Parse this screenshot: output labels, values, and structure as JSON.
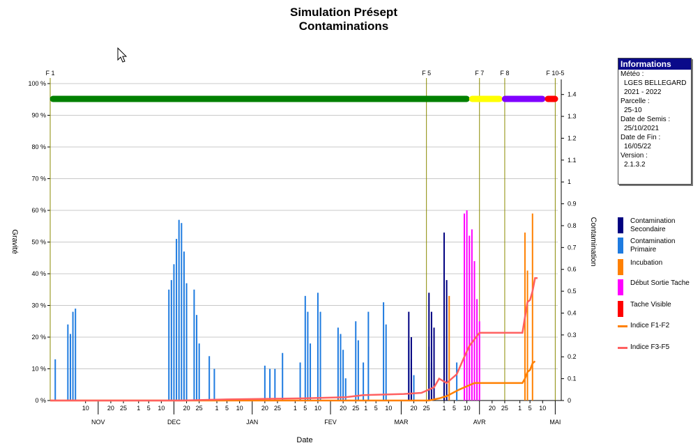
{
  "title": {
    "line1": "Simulation Présept",
    "line2": "Contaminations"
  },
  "info": {
    "header": "Informations",
    "rows": [
      {
        "label": "Météo :",
        "value": "LGES BELLEGARD"
      },
      {
        "label": "",
        "value": "2021 - 2022"
      },
      {
        "label": "Parcelle :",
        "value": "25-10"
      },
      {
        "label": "Date de Semis :",
        "value": "25/10/2021"
      },
      {
        "label": "Date de Fin :",
        "value": "16/05/22"
      },
      {
        "label": "Version :",
        "value": "2.1.3.2"
      }
    ]
  },
  "legend": [
    {
      "label": "Contamination Secondaire",
      "color": "#000080",
      "kind": "box"
    },
    {
      "label": "Contamination Primaire",
      "color": "#1e7be0",
      "kind": "box"
    },
    {
      "label": "Incubation",
      "color": "#ff8000",
      "kind": "box"
    },
    {
      "label": "Début Sortie Tache",
      "color": "#ff00ff",
      "kind": "box"
    },
    {
      "label": "Tache Visible",
      "color": "#ff0000",
      "kind": "box"
    },
    {
      "label": "Indice F1-F2",
      "color": "#ff8000",
      "kind": "line"
    },
    {
      "label": "Indice F3-F5",
      "color": "#ff6060",
      "kind": "line"
    }
  ],
  "chart_data": {
    "type": "bar",
    "xlabel": "Date",
    "ylabel_left": "Gravité",
    "ylabel_right": "Contamination",
    "y_left_ticks": [
      "0 %",
      "10 %",
      "20 %",
      "30 %",
      "40 %",
      "50 %",
      "60 %",
      "70 %",
      "80 %",
      "90 %",
      "100 %"
    ],
    "y_right_ticks": [
      "0",
      "0.1",
      "0.2",
      "0.3",
      "0.4",
      "0.5",
      "0.6",
      "0.7",
      "0.8",
      "0.9",
      "1",
      "1.1",
      "1.2",
      "1.3",
      "1.4"
    ],
    "ylim_left": [
      0,
      100
    ],
    "ylim_right": [
      0,
      1.45
    ],
    "start_date": "2021-10-27",
    "x_day_ticks": [
      {
        "day": 14,
        "label": "10"
      },
      {
        "day": 24,
        "label": "20"
      },
      {
        "day": 29,
        "label": "25"
      },
      {
        "day": 35,
        "label": "1"
      },
      {
        "day": 39,
        "label": "5"
      },
      {
        "day": 44,
        "label": "10"
      },
      {
        "day": 54,
        "label": "20"
      },
      {
        "day": 59,
        "label": "25"
      },
      {
        "day": 66,
        "label": "1"
      },
      {
        "day": 70,
        "label": "5"
      },
      {
        "day": 75,
        "label": "10"
      },
      {
        "day": 85,
        "label": "20"
      },
      {
        "day": 90,
        "label": "25"
      },
      {
        "day": 97,
        "label": "1"
      },
      {
        "day": 101,
        "label": "5"
      },
      {
        "day": 106,
        "label": "10"
      },
      {
        "day": 116,
        "label": "20"
      },
      {
        "day": 121,
        "label": "25"
      },
      {
        "day": 125,
        "label": "1"
      },
      {
        "day": 129,
        "label": "5"
      },
      {
        "day": 134,
        "label": "10"
      },
      {
        "day": 144,
        "label": "20"
      },
      {
        "day": 149,
        "label": "25"
      },
      {
        "day": 156,
        "label": "1"
      },
      {
        "day": 160,
        "label": "5"
      },
      {
        "day": 165,
        "label": "10"
      },
      {
        "day": 175,
        "label": "20"
      },
      {
        "day": 180,
        "label": "25"
      },
      {
        "day": 186,
        "label": "1"
      },
      {
        "day": 190,
        "label": "5"
      },
      {
        "day": 195,
        "label": "10"
      }
    ],
    "x_months": [
      {
        "day": 19,
        "label": "NOV"
      },
      {
        "day": 49,
        "label": "DEC"
      },
      {
        "day": 80,
        "label": "JAN"
      },
      {
        "day": 111,
        "label": "FEV"
      },
      {
        "day": 139,
        "label": "MAR"
      },
      {
        "day": 170,
        "label": "AVR"
      },
      {
        "day": 200,
        "label": "MAI"
      }
    ],
    "stages": [
      {
        "day": 0,
        "label": "F 1"
      },
      {
        "day": 149,
        "label": "F 5"
      },
      {
        "day": 170,
        "label": "F 7"
      },
      {
        "day": 180,
        "label": "F 8"
      },
      {
        "day": 200,
        "label": "F 10-5"
      }
    ],
    "phase_bar": [
      {
        "from": 0,
        "to": 166,
        "color": "#008000"
      },
      {
        "from": 166,
        "to": 179,
        "color": "#ffff00"
      },
      {
        "from": 179,
        "to": 196,
        "color": "#8000ff"
      },
      {
        "from": 196,
        "to": 201,
        "color": "#ff0000"
      }
    ],
    "series": [
      {
        "name": "Contamination Primaire",
        "color": "#1e7be0",
        "points": [
          [
            2,
            13
          ],
          [
            7,
            24
          ],
          [
            8,
            21
          ],
          [
            9,
            28
          ],
          [
            10,
            29
          ],
          [
            47,
            35
          ],
          [
            48,
            38
          ],
          [
            49,
            43
          ],
          [
            50,
            51
          ],
          [
            51,
            57
          ],
          [
            52,
            56
          ],
          [
            53,
            47
          ],
          [
            54,
            37
          ],
          [
            57,
            35
          ],
          [
            58,
            27
          ],
          [
            59,
            18
          ],
          [
            63,
            14
          ],
          [
            65,
            10
          ],
          [
            85,
            11
          ],
          [
            87,
            10
          ],
          [
            89,
            10
          ],
          [
            92,
            15
          ],
          [
            99,
            12
          ],
          [
            101,
            33
          ],
          [
            102,
            28
          ],
          [
            103,
            18
          ],
          [
            106,
            34
          ],
          [
            107,
            28
          ],
          [
            114,
            23
          ],
          [
            115,
            21
          ],
          [
            116,
            16
          ],
          [
            117,
            7
          ],
          [
            121,
            25
          ],
          [
            122,
            19
          ],
          [
            124,
            12
          ],
          [
            126,
            28
          ],
          [
            132,
            31
          ],
          [
            133,
            24
          ],
          [
            142,
            19
          ],
          [
            143,
            13
          ],
          [
            144,
            8
          ],
          [
            150,
            17
          ],
          [
            151,
            12
          ],
          [
            161,
            12
          ]
        ]
      },
      {
        "name": "Contamination Secondaire",
        "color": "#000080",
        "points": [
          [
            142,
            28
          ],
          [
            143,
            20
          ],
          [
            150,
            34
          ],
          [
            151,
            28
          ],
          [
            152,
            23
          ],
          [
            156,
            53
          ],
          [
            157,
            38
          ]
        ]
      },
      {
        "name": "Incubation",
        "color": "#ff8000",
        "points": [
          [
            158,
            33
          ],
          [
            188,
            53
          ],
          [
            189,
            41
          ],
          [
            191,
            59
          ]
        ]
      },
      {
        "name": "Début Sortie Tache",
        "color": "#ff00ff",
        "points": [
          [
            164,
            59
          ],
          [
            165,
            60
          ],
          [
            166,
            52
          ],
          [
            167,
            54
          ],
          [
            168,
            44
          ],
          [
            169,
            32
          ],
          [
            170,
            25
          ]
        ]
      },
      {
        "name": "Indice F1-F2",
        "color": "#ff8000",
        "axis": "right",
        "points": [
          [
            0,
            0
          ],
          [
            150,
            0
          ],
          [
            154,
            0.01
          ],
          [
            157,
            0.02
          ],
          [
            162,
            0.05
          ],
          [
            166,
            0.07
          ],
          [
            168,
            0.08
          ],
          [
            187,
            0.08
          ],
          [
            188,
            0.1
          ],
          [
            189,
            0.13
          ],
          [
            190,
            0.14
          ],
          [
            191,
            0.17
          ],
          [
            192,
            0.18
          ]
        ]
      },
      {
        "name": "Indice F3-F5",
        "color": "#ff6060",
        "axis": "right",
        "points": [
          [
            0,
            0
          ],
          [
            52,
            0
          ],
          [
            70,
            0.005
          ],
          [
            100,
            0.01
          ],
          [
            117,
            0.015
          ],
          [
            124,
            0.025
          ],
          [
            140,
            0.03
          ],
          [
            147,
            0.035
          ],
          [
            152,
            0.06
          ],
          [
            154,
            0.1
          ],
          [
            157,
            0.08
          ],
          [
            161,
            0.12
          ],
          [
            164,
            0.2
          ],
          [
            166,
            0.25
          ],
          [
            168,
            0.28
          ],
          [
            170,
            0.31
          ],
          [
            187,
            0.31
          ],
          [
            189,
            0.45
          ],
          [
            190,
            0.46
          ],
          [
            191,
            0.5
          ],
          [
            192,
            0.56
          ],
          [
            193,
            0.56
          ]
        ]
      }
    ]
  }
}
